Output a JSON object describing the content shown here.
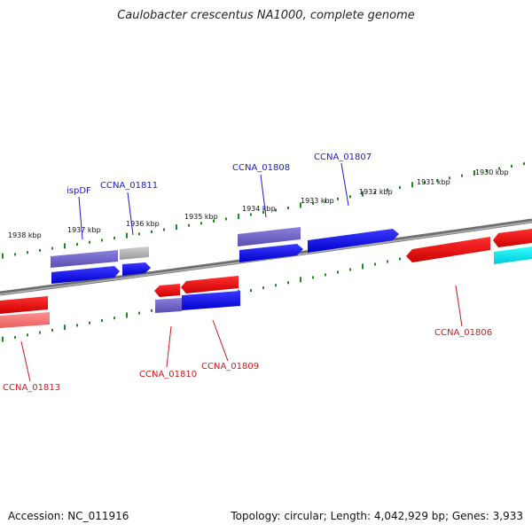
{
  "title": "Caulobacter crescentus NA1000, complete genome",
  "footer": {
    "accession": "Accession: NC_011916",
    "summary": "Topology: circular; Length: 4,042,929 bp; Genes: 3,933"
  },
  "ticks": [
    {
      "label": "1938 kbp"
    },
    {
      "label": "1937 kbp"
    },
    {
      "label": "1936 kbp"
    },
    {
      "label": "1935 kbp"
    },
    {
      "label": "1934 kbp"
    },
    {
      "label": "1933 kbp"
    },
    {
      "label": "1932 kbp"
    },
    {
      "label": "1931 kbp"
    },
    {
      "label": "1930 kbp"
    }
  ],
  "genes": [
    {
      "name": "ispDF"
    },
    {
      "name": "CCNA_01811"
    },
    {
      "name": "CCNA_01808"
    },
    {
      "name": "CCNA_01807"
    },
    {
      "name": "CCNA_01806"
    },
    {
      "name": "CCNA_01809"
    },
    {
      "name": "CCNA_01810"
    },
    {
      "name": "CCNA_01813"
    }
  ],
  "colors": {
    "forward_label": "#1a1acc",
    "reverse_label": "#cc1a1a",
    "tick": "#1f8a1f",
    "backbone": "#7a7a7a"
  }
}
